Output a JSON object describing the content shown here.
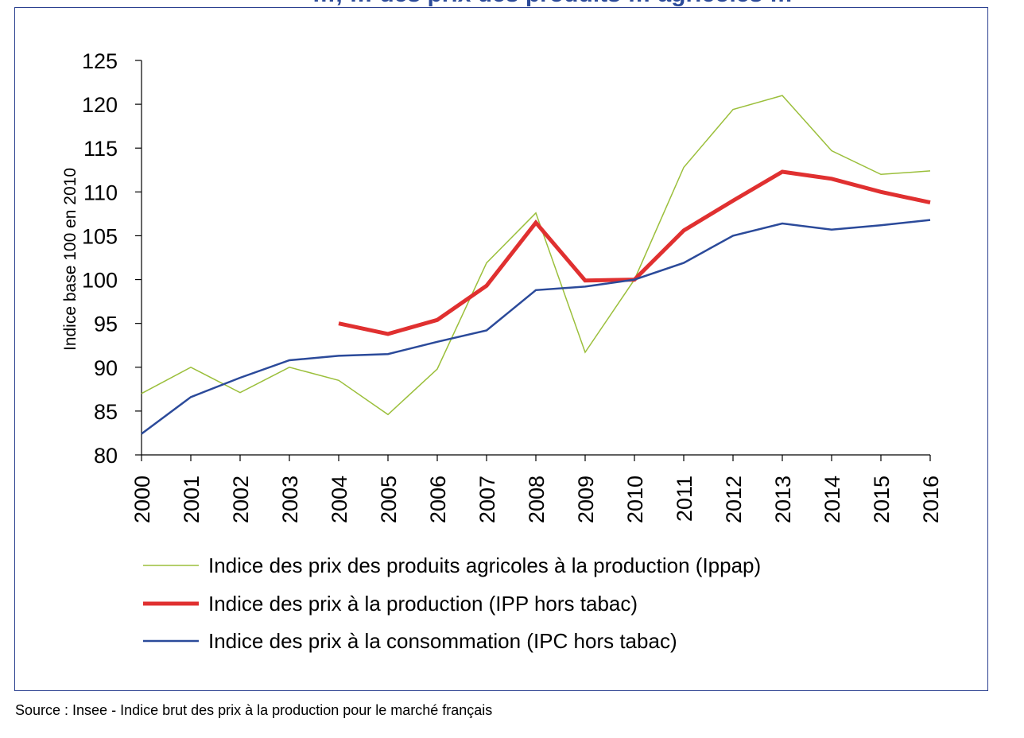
{
  "page_title": "…, … des prix des produits … agricoles …",
  "source_note": "Source : Insee - Indice brut des prix à la production pour le marché français",
  "chart_data": {
    "type": "line",
    "ylabel": "Indice base 100 en 2010",
    "xlabel": "",
    "ylim": [
      80,
      125
    ],
    "yticks": [
      80,
      85,
      90,
      95,
      100,
      105,
      110,
      115,
      120,
      125
    ],
    "x": [
      "2000",
      "2001",
      "2002",
      "2003",
      "2004",
      "2005",
      "2006",
      "2007",
      "2008",
      "2009",
      "2010",
      "2011",
      "2012",
      "2013",
      "2014",
      "2015",
      "2016"
    ],
    "grid": false,
    "legend_position": "bottom",
    "series": [
      {
        "name": "Indice des prix des produits agricoles à la production (Ippap)",
        "color": "#9bbf3b",
        "width": 1.5,
        "values": [
          87.0,
          90.0,
          87.1,
          90.0,
          88.5,
          84.6,
          89.8,
          101.9,
          107.6,
          91.7,
          100.0,
          112.8,
          119.4,
          121.0,
          114.7,
          112.0,
          112.4
        ]
      },
      {
        "name": "Indice des prix à la production (IPP hors tabac)",
        "color": "#e03030",
        "width": 5,
        "values": [
          null,
          null,
          null,
          null,
          95.0,
          93.8,
          95.4,
          99.3,
          106.5,
          99.9,
          100.0,
          105.6,
          109.0,
          112.3,
          111.5,
          110.0,
          108.8
        ]
      },
      {
        "name": "Indice des prix à la consommation (IPC hors tabac)",
        "color": "#2b4a9a",
        "width": 2.5,
        "values": [
          82.4,
          86.6,
          88.8,
          90.8,
          91.3,
          91.5,
          92.9,
          94.2,
          98.8,
          99.2,
          100.0,
          101.9,
          105.0,
          106.4,
          105.7,
          106.2,
          106.8
        ]
      }
    ]
  }
}
